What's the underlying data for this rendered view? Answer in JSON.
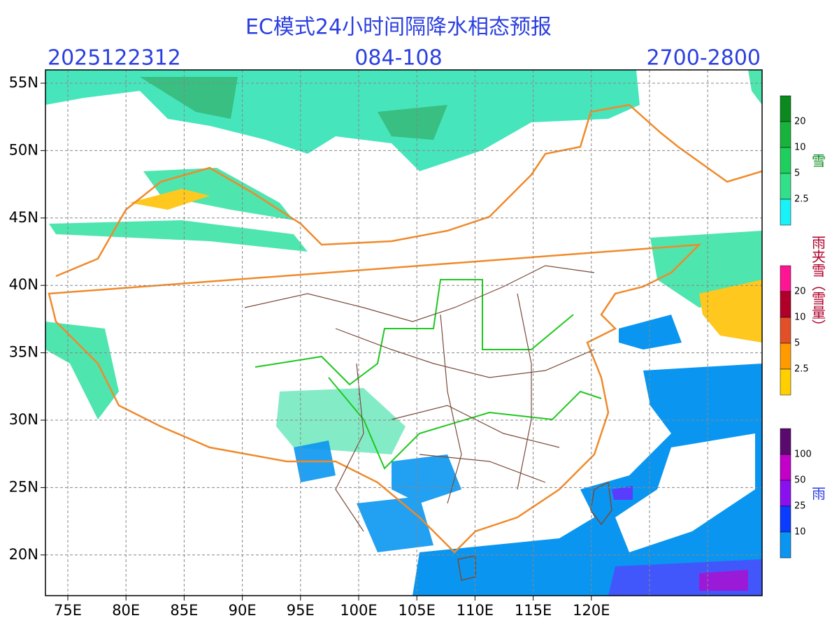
{
  "header": {
    "title": "EC模式24小时间隔降水相态预报",
    "init_time": "2025122312",
    "forecast_hours": "084-108",
    "level": "2700-2800"
  },
  "axes": {
    "lat_labels": [
      "55N",
      "50N",
      "45N",
      "40N",
      "35N",
      "30N",
      "25N",
      "20N"
    ],
    "lon_labels": [
      "75E",
      "80E",
      "85E",
      "90E",
      "95E",
      "100E",
      "105E",
      "110E",
      "115E",
      "120E"
    ]
  },
  "legends": [
    {
      "title": "雪",
      "ticks": [
        "20",
        "10",
        "5",
        "2.5"
      ],
      "colors": [
        "#0a8a1e",
        "#17b33a",
        "#1fcf5e",
        "#33e08a",
        "#19f2f7"
      ]
    },
    {
      "title": "雨夹雪（雪量）",
      "ticks": [
        "20",
        "10",
        "5",
        "2.5"
      ],
      "colors": [
        "#ff1493",
        "#b0002a",
        "#e2502a",
        "#ff9a00",
        "#ffd000"
      ]
    },
    {
      "title": "雨",
      "ticks": [
        "100",
        "50",
        "25",
        "10"
      ],
      "colors": [
        "#5a0a6e",
        "#c200c8",
        "#8a10f0",
        "#0a3cff",
        "#0a96f0"
      ]
    }
  ]
}
